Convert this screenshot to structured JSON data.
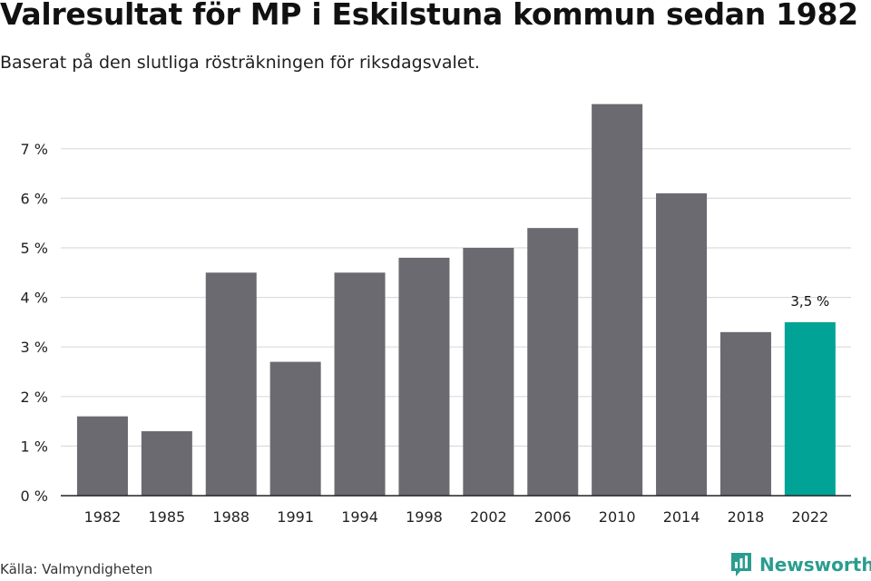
{
  "header": {
    "title": "Valresultat för MP i Eskilstuna kommun sedan 1982",
    "subtitle": "Baserat på den slutliga rösträkningen för riksdagsvalet."
  },
  "footer": {
    "source": "Källa: Valmyndigheten",
    "brand": "Newsworthy",
    "brand_icon": "newsworthy-logo-icon"
  },
  "colors": {
    "bar": "#6b6a70",
    "highlight": "#00a396",
    "grid": "#dcdcdc",
    "axis": "#222222",
    "brand": "#2a9d8f"
  },
  "chart_data": {
    "type": "bar",
    "categories": [
      "1982",
      "1985",
      "1988",
      "1991",
      "1994",
      "1998",
      "2002",
      "2006",
      "2010",
      "2014",
      "2018",
      "2022"
    ],
    "values": [
      1.6,
      1.3,
      4.5,
      2.7,
      4.5,
      4.8,
      5.0,
      5.4,
      7.9,
      6.1,
      3.3,
      3.5
    ],
    "highlight_index": 11,
    "data_labels": [
      {
        "index": 11,
        "text": "3,5 %"
      }
    ],
    "yticks": [
      0,
      1,
      2,
      3,
      4,
      5,
      6,
      7
    ],
    "ytick_labels": [
      "0 %",
      "1 %",
      "2 %",
      "3 %",
      "4 %",
      "5 %",
      "6 %",
      "7 %"
    ],
    "ylim": [
      0,
      7.9
    ],
    "grid": true,
    "legend": false,
    "title": "Valresultat för MP i Eskilstuna kommun sedan 1982",
    "xlabel": "",
    "ylabel": ""
  }
}
